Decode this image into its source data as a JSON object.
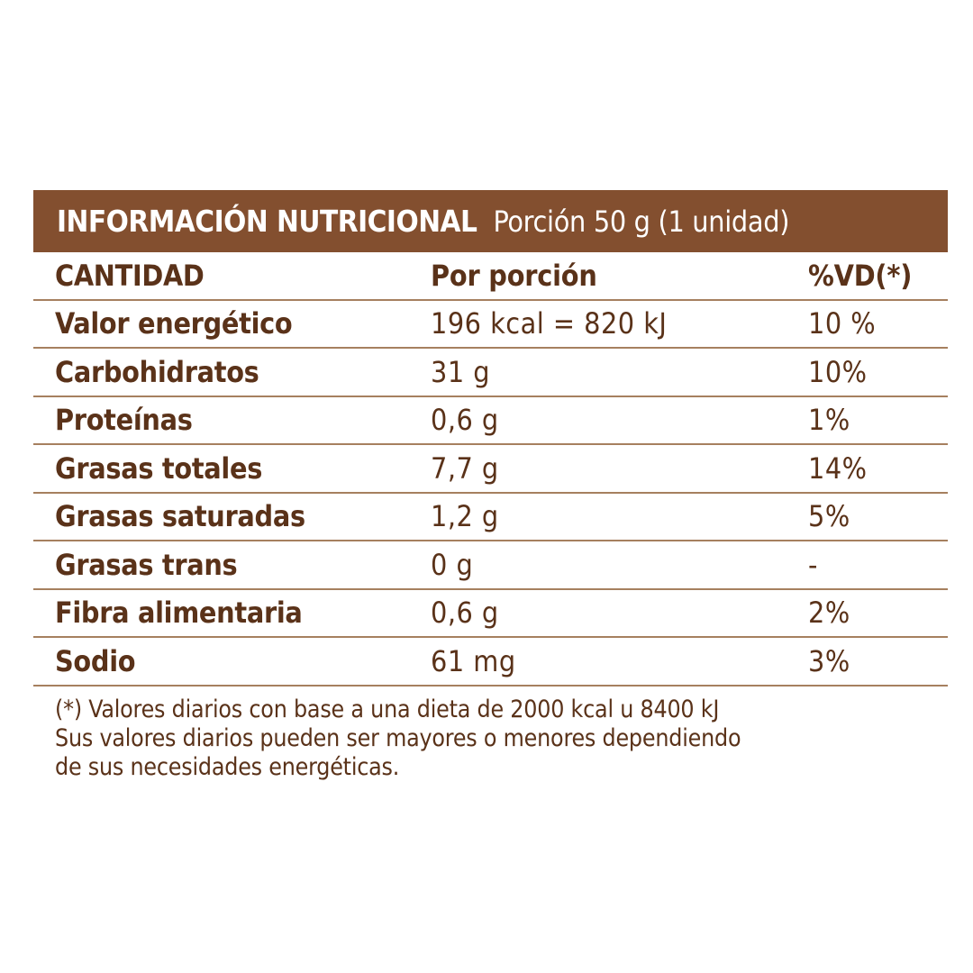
{
  "header": {
    "title": "INFORMACIÓN NUTRICIONAL",
    "portion": "Porción 50 g (1 unidad)"
  },
  "table": {
    "columns": [
      "CANTIDAD",
      "Por porción",
      "%VD(*)"
    ],
    "rows": [
      {
        "name": "Valor energético",
        "amount": "196 kcal = 820 kJ",
        "dv": "10 %"
      },
      {
        "name": "Carbohidratos",
        "amount": "31 g",
        "dv": "10%"
      },
      {
        "name": "Proteínas",
        "amount": "0,6 g",
        "dv": "1%"
      },
      {
        "name": "Grasas totales",
        "amount": "7,7 g",
        "dv": "14%"
      },
      {
        "name": "Grasas saturadas",
        "amount": "1,2 g",
        "dv": "5%"
      },
      {
        "name": "Grasas trans",
        "amount": "0 g",
        "dv": "-"
      },
      {
        "name": "Fibra alimentaria",
        "amount": "0,6 g",
        "dv": "2%"
      },
      {
        "name": "Sodio",
        "amount": "61 mg",
        "dv": "3%"
      }
    ]
  },
  "footnote": [
    "(*) Valores diarios con base a una dieta de 2000 kcal u 8400 kJ",
    "Sus valores diarios pueden ser mayores o menores dependiendo",
    "de sus necesidades energéticas."
  ],
  "colors": {
    "header_bg": "#834f2f",
    "text": "#5a3219",
    "rule": "#a6805f"
  }
}
